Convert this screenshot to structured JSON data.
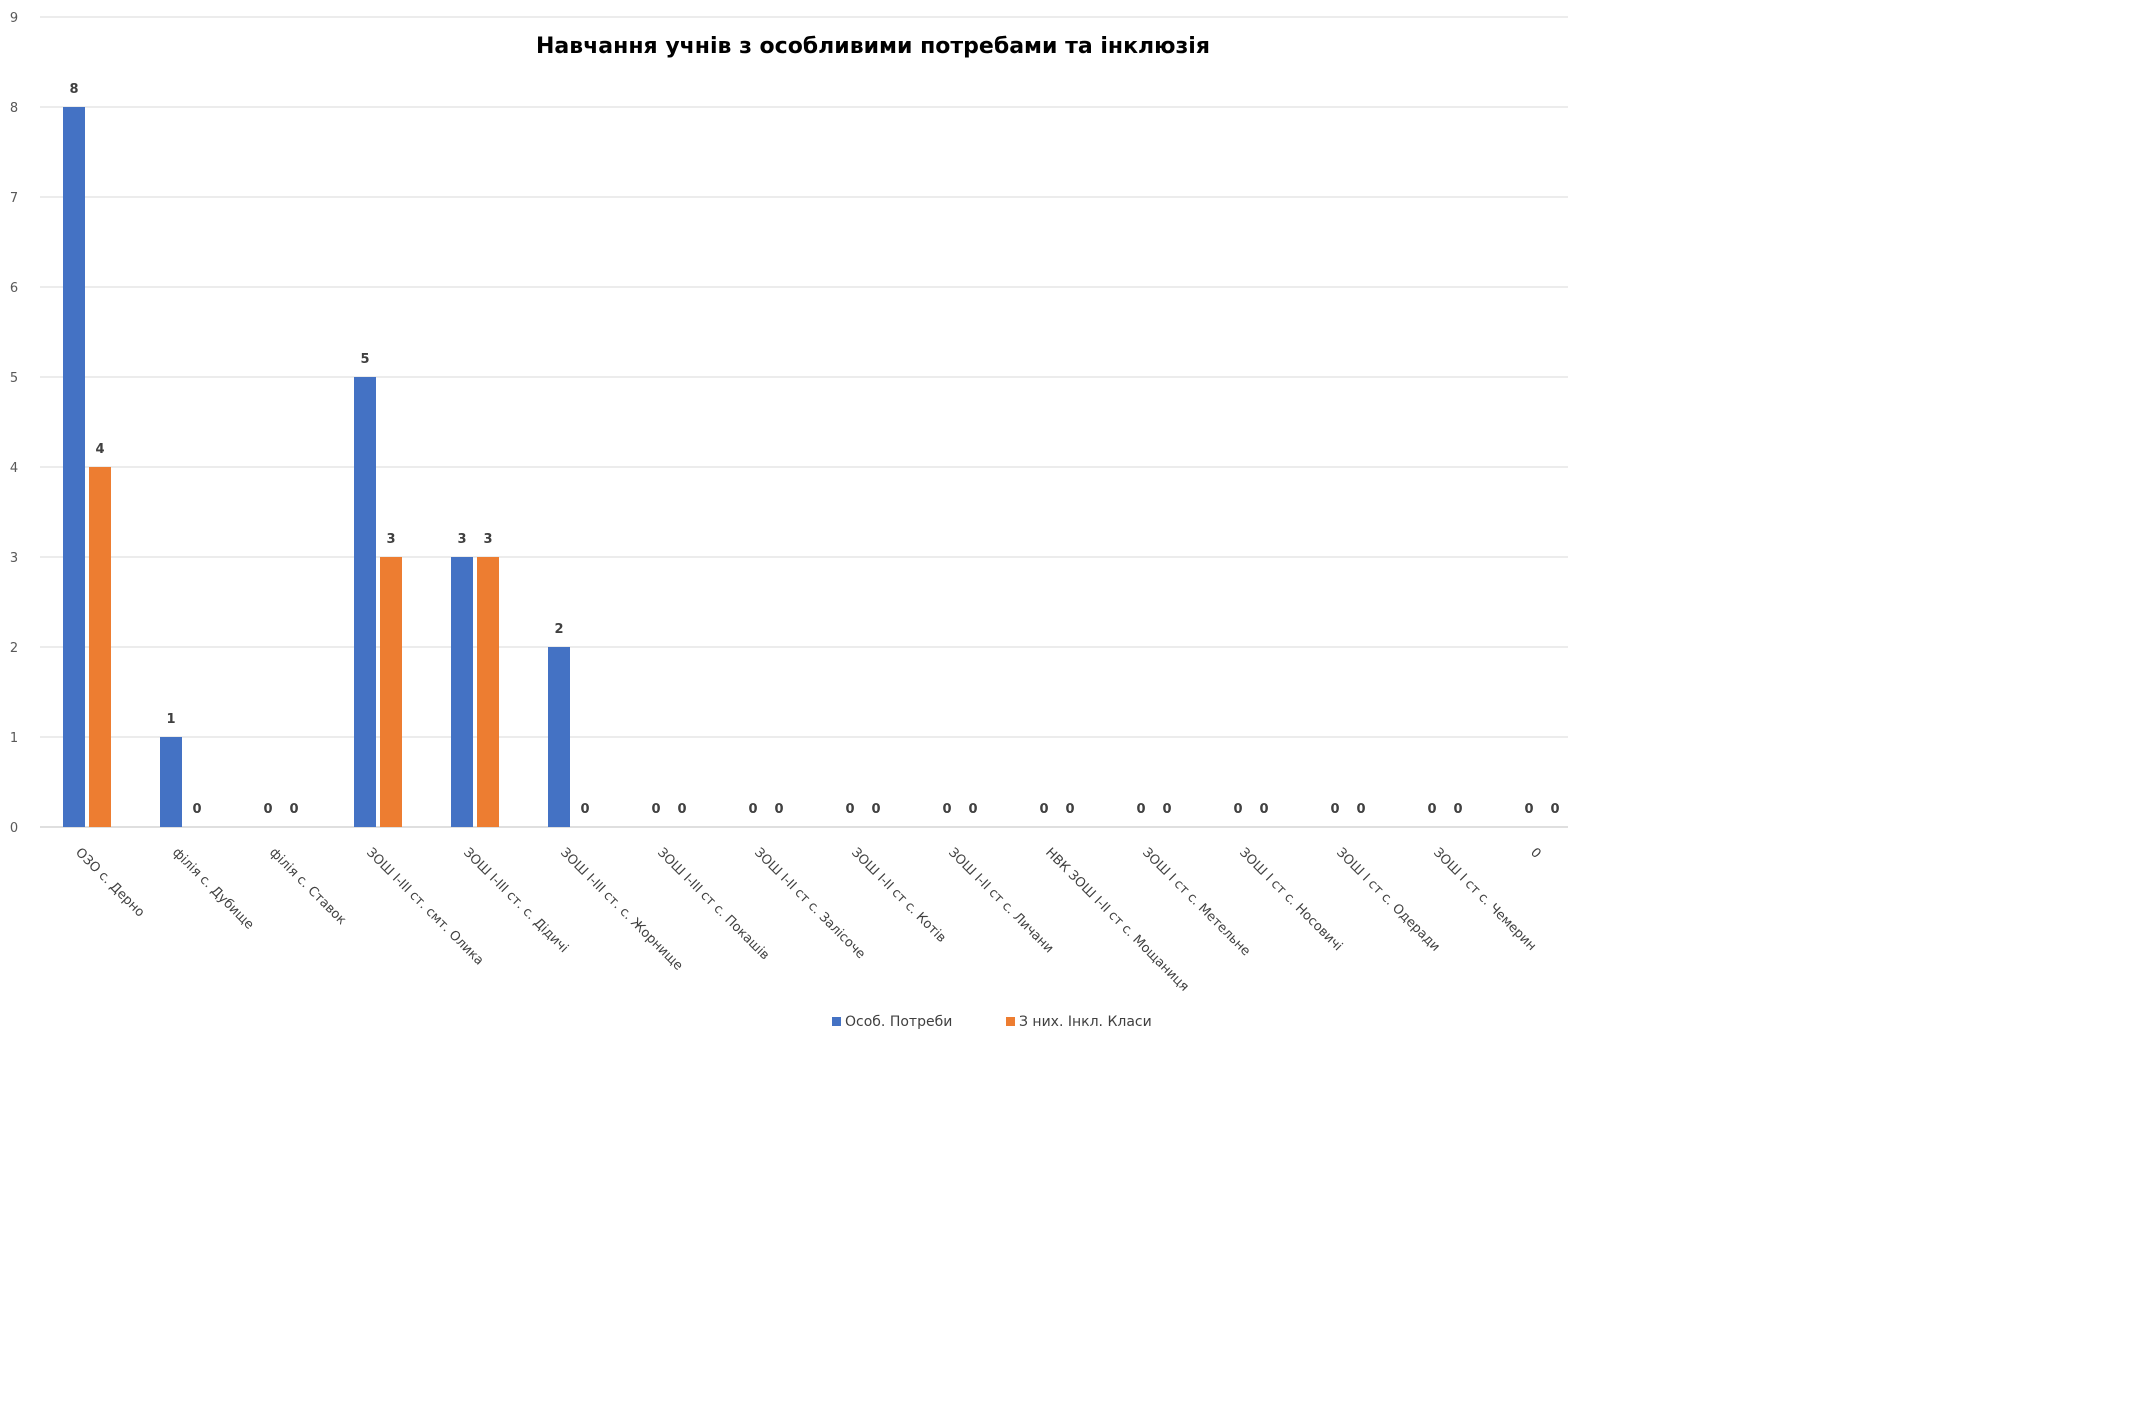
{
  "chart_data": {
    "type": "bar",
    "title": "Навчання учнів з особливими потребами та інклюзія",
    "xlabel": "",
    "ylabel": "",
    "ylim": [
      0,
      9
    ],
    "yticks": [
      0,
      1,
      2,
      3,
      4,
      5,
      6,
      7,
      8,
      9
    ],
    "grid": true,
    "legend_position": "bottom",
    "categories": [
      "ОЗО  с. Дерно",
      "філія с. Дубище",
      "філія с. Ставок",
      "ЗОШ І-ІІІ ст.  смт. Олика",
      "ЗОШ І-ІІІ ст. с. Дідичі",
      "ЗОШ І-ІІІ ст. с. Жорнище",
      "ЗОШ І-ІІІ ст с. Покашів",
      "ЗОШ І-ІІ ст с. Залісоче",
      "ЗОШ І-ІІ ст с. Котів",
      "ЗОШ І-ІІ ст с. Личани",
      "НВК ЗОШ І-ІІ ст  с. Мощаниця",
      "ЗОШ І ст с. Метельне",
      "ЗОШ І ст с. Носовичі",
      "ЗОШ І ст с. Одеради",
      "ЗОШ І ст с. Чемерин",
      "0"
    ],
    "series": [
      {
        "name": "Особ. Потреби",
        "color": "#4472C4",
        "values": [
          8,
          1,
          0,
          5,
          3,
          2,
          0,
          0,
          0,
          0,
          0,
          0,
          0,
          0,
          0,
          0
        ]
      },
      {
        "name": "З них. Інкл. Класи",
        "color": "#ED7D31",
        "values": [
          4,
          0,
          0,
          3,
          3,
          0,
          0,
          0,
          0,
          0,
          0,
          0,
          0,
          0,
          0,
          0
        ]
      }
    ]
  }
}
